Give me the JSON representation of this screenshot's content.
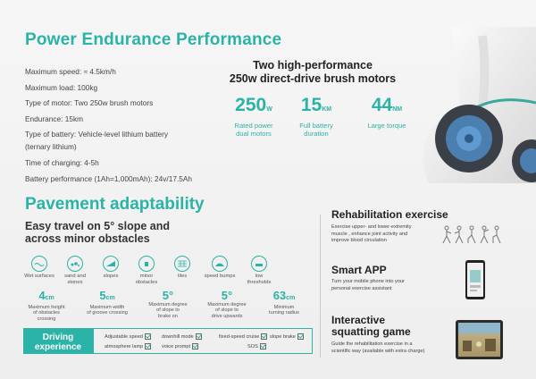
{
  "power": {
    "title": "Power Endurance Performance",
    "specs": [
      "Maximum speed: ≈ 4.5km/h",
      "Maximum load: 100kg",
      "Type of motor: Two 250w brush motors",
      "Endurance: 15km",
      "Type of battery: Vehicle-level lithium battery",
      "(ternary lithium)",
      "Time of charging: 4-5h",
      "Battery performance (1Ah=1,000mAh): 24v/17.5Ah"
    ],
    "motors_title_1": "Two high-performance",
    "motors_title_2": "250w direct-drive brush motors",
    "stats": [
      {
        "num": "250",
        "unit": "W",
        "label1": "Rated power",
        "label2": "dual motors"
      },
      {
        "num": "15",
        "unit": "KM",
        "label1": "Full battery",
        "label2": "duration"
      },
      {
        "num": "44",
        "unit": "NM",
        "label1": "Large torque",
        "label2": ""
      }
    ]
  },
  "pavement": {
    "title": "Pavement adaptability",
    "sub1": "Easy travel on 5° slope and",
    "sub2": "across minor obstacles",
    "icons": [
      {
        "icon": "wet-surface-icon",
        "l1": "Wet surfaces",
        "l2": ""
      },
      {
        "icon": "sand-stone-icon",
        "l1": "sand and",
        "l2": "stones"
      },
      {
        "icon": "slope-icon",
        "l1": "slopes",
        "l2": ""
      },
      {
        "icon": "obstacle-icon",
        "l1": "minor",
        "l2": "obstacles"
      },
      {
        "icon": "tiles-icon",
        "l1": "tiles",
        "l2": ""
      },
      {
        "icon": "speed-bump-icon",
        "l1": "speed bumps",
        "l2": ""
      },
      {
        "icon": "threshold-icon",
        "l1": "low",
        "l2": "thresholds"
      }
    ],
    "measures": [
      {
        "v": "4",
        "u": "cm",
        "d1": "Maximum height",
        "d2": "of obstacles",
        "d3": "crossing"
      },
      {
        "v": "5",
        "u": "cm",
        "d1": "Maximum width",
        "d2": "of groove crossing",
        "d3": ""
      },
      {
        "v": "5°",
        "u": "",
        "d1": "Maximum degree",
        "d2": "of slope to",
        "d3": "brake on"
      },
      {
        "v": "5°",
        "u": "",
        "d1": "Maximum degree",
        "d2": "of slope to",
        "d3": "drive upwards"
      },
      {
        "v": "63",
        "u": "cm",
        "d1": "Minimum",
        "d2": "turning radius",
        "d3": ""
      }
    ]
  },
  "driving": {
    "label1": "Driving",
    "label2": "experience",
    "options": [
      "Adjustable speed",
      "downhill mode",
      "fixed-speed cruise",
      "slope brake",
      "atmosphere lamp",
      "voice prompt",
      "SOS"
    ]
  },
  "rehab": {
    "title": "Rehabilitation exercise",
    "d1": "Exercise upper- and lower-extremity",
    "d2": "muscle , enhance joint activity and",
    "d3": "improve blood circulation"
  },
  "smartapp": {
    "title": "Smart APP",
    "d1": "Turn your mobile phone into your",
    "d2": "personal exercise assistant"
  },
  "game": {
    "title1": "Interactive",
    "title2": "squatting game",
    "d1": "Guide the rehabilitation exercise in a",
    "d2": "scientific way (available with extra charge)"
  },
  "colors": {
    "accent": "#2bb3a7",
    "text": "#333333"
  }
}
